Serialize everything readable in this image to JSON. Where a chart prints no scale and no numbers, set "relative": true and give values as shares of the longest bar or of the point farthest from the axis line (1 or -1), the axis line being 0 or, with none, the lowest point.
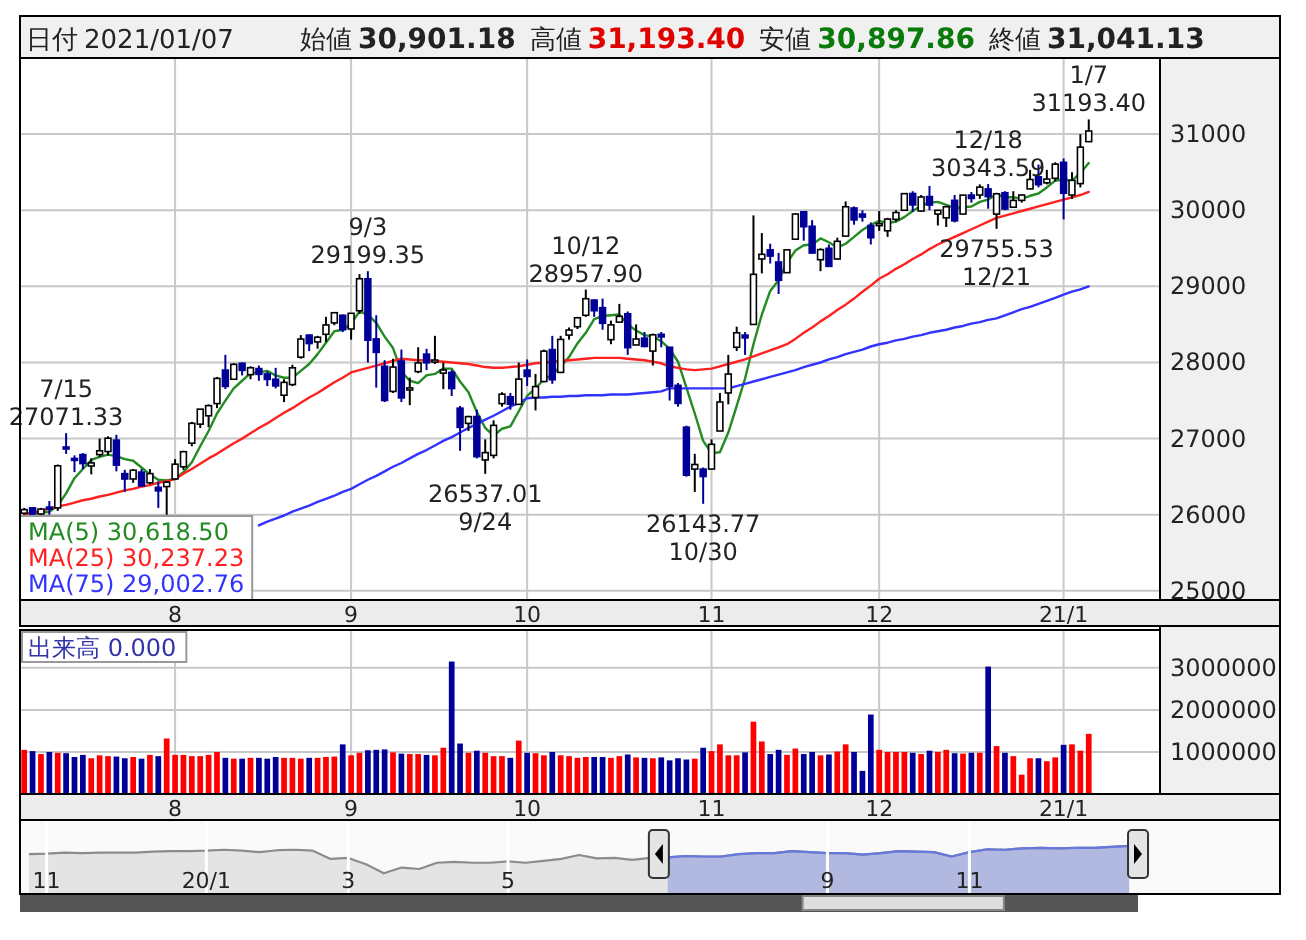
{
  "chart_data": [
    {
      "type": "candlestick",
      "annotations": [
        "日付",
        "2021/01/07",
        "始値",
        "30,901.18",
        "高値",
        "31,193.40",
        "安値",
        "30,897.86",
        "終値",
        "31,041.13",
        {
          "text": "7/15\n27071.33",
          "y": 27071.33
        },
        {
          "text": "9/3\n29199.35",
          "y": 29199.35
        },
        {
          "text": "26537.01\n9/24",
          "y": 26537.01
        },
        {
          "text": "10/12\n28957.90",
          "y": 28957.9
        },
        {
          "text": "26143.77\n10/30",
          "y": 26143.77
        },
        {
          "text": "12/18\n30343.59",
          "y": 30343.59
        },
        {
          "text": "29755.53\n12/21",
          "y": 29755.53
        },
        {
          "text": "1/7\n31193.40",
          "y": 31193.4
        }
      ],
      "categories": [
        null,
        null,
        null,
        null,
        null,
        null,
        null,
        null,
        null,
        null,
        null,
        null,
        null,
        null,
        null,
        null,
        null,
        null,
        "8",
        null,
        null,
        null,
        null,
        null,
        null,
        null,
        null,
        null,
        null,
        null,
        null,
        null,
        null,
        null,
        null,
        null,
        null,
        null,
        null,
        "9",
        null,
        null,
        null,
        null,
        null,
        null,
        null,
        null,
        null,
        null,
        null,
        null,
        null,
        null,
        null,
        null,
        null,
        null,
        null,
        null,
        "10",
        null,
        null,
        null,
        null,
        null,
        null,
        null,
        null,
        null,
        null,
        null,
        null,
        null,
        null,
        null,
        null,
        null,
        null,
        null,
        null,
        null,
        "11",
        null,
        null,
        null,
        null,
        null,
        null,
        null,
        null,
        null,
        null,
        null,
        null,
        null,
        null,
        null,
        null,
        null,
        null,
        null,
        "12",
        null,
        null,
        null,
        null,
        null,
        null,
        null,
        null,
        null,
        null,
        null,
        null,
        null,
        null,
        null,
        null,
        null,
        null,
        null,
        null,
        null,
        "21/1",
        null,
        null,
        null
      ],
      "ohlc": [
        [
          26020,
          26090,
          26000,
          26067
        ],
        [
          26090,
          26100,
          26000,
          26010
        ],
        [
          26010,
          26090,
          26000,
          26075
        ],
        [
          26100,
          26180,
          26000,
          26086
        ],
        [
          26090,
          26660,
          26050,
          26643
        ],
        [
          26890,
          27071.33,
          26800,
          26870
        ],
        [
          26740,
          26780,
          26560,
          26735
        ],
        [
          26790,
          26810,
          26600,
          26672
        ],
        [
          26640,
          26740,
          26530,
          26681
        ],
        [
          26790,
          27000,
          26760,
          26840
        ],
        [
          26830,
          27030,
          26780,
          27005
        ],
        [
          26980,
          27050,
          26570,
          26652
        ],
        [
          26540,
          26590,
          26300,
          26469
        ],
        [
          26470,
          26600,
          26420,
          26585
        ],
        [
          26560,
          26600,
          26370,
          26379
        ],
        [
          26420,
          26600,
          26400,
          26540
        ],
        [
          26360,
          26440,
          26090,
          26314
        ],
        [
          26370,
          26440,
          26000,
          26428
        ],
        [
          26470,
          26730,
          26460,
          26664
        ],
        [
          26630,
          26840,
          26590,
          26828
        ],
        [
          26940,
          27220,
          26900,
          27201
        ],
        [
          27190,
          27390,
          27140,
          27387
        ],
        [
          27300,
          27450,
          27150,
          27433
        ],
        [
          27460,
          27810,
          27400,
          27791
        ],
        [
          27900,
          28100,
          27650,
          27686
        ],
        [
          27780,
          27990,
          27770,
          27976
        ],
        [
          27990,
          28000,
          27830,
          27897
        ],
        [
          27840,
          27950,
          27780,
          27931
        ],
        [
          27920,
          27960,
          27760,
          27844
        ],
        [
          27850,
          27880,
          27690,
          27778
        ],
        [
          27780,
          27930,
          27660,
          27692
        ],
        [
          27570,
          27780,
          27480,
          27739
        ],
        [
          27710,
          27970,
          27690,
          27930
        ],
        [
          28070,
          28360,
          28050,
          28308
        ],
        [
          28360,
          28370,
          28150,
          28249
        ],
        [
          28270,
          28350,
          28180,
          28332
        ],
        [
          28370,
          28600,
          28270,
          28493
        ],
        [
          28520,
          28660,
          28490,
          28654
        ],
        [
          28620,
          28630,
          28400,
          28430
        ],
        [
          28440,
          28650,
          28300,
          28646
        ],
        [
          28680,
          29160,
          28640,
          29100
        ],
        [
          29100,
          29199.35,
          28000,
          28293
        ],
        [
          28310,
          28620,
          27670,
          28133
        ],
        [
          27950,
          28030,
          27480,
          27501
        ],
        [
          27620,
          28050,
          27600,
          27940
        ],
        [
          28020,
          28170,
          27480,
          27535
        ],
        [
          27640,
          27800,
          27440,
          27666
        ],
        [
          27880,
          28200,
          27860,
          27994
        ],
        [
          28110,
          28180,
          27900,
          27996
        ],
        [
          28020,
          28350,
          27980,
          28032
        ],
        [
          27860,
          28000,
          27650,
          27902
        ],
        [
          27870,
          27900,
          27560,
          27658
        ],
        [
          27400,
          27430,
          26840,
          27148
        ],
        [
          27200,
          27300,
          27100,
          27289
        ],
        [
          27290,
          27380,
          26740,
          26763
        ],
        [
          26720,
          26990,
          26537.01,
          26816
        ],
        [
          26780,
          27240,
          26740,
          27174
        ],
        [
          27460,
          27610,
          27420,
          27584
        ],
        [
          27550,
          27600,
          27380,
          27452
        ],
        [
          27450,
          28000,
          27450,
          27782
        ],
        [
          27900,
          28040,
          27690,
          27817
        ],
        [
          27540,
          27850,
          27370,
          27683
        ],
        [
          27750,
          28170,
          27740,
          28149
        ],
        [
          28170,
          28350,
          27720,
          27773
        ],
        [
          27870,
          28350,
          27860,
          28303
        ],
        [
          28360,
          28460,
          28300,
          28426
        ],
        [
          28470,
          28600,
          28440,
          28587
        ],
        [
          28620,
          28957.9,
          28600,
          28838
        ],
        [
          28820,
          28830,
          28600,
          28680
        ],
        [
          28720,
          28840,
          28430,
          28515
        ],
        [
          28300,
          28550,
          28240,
          28494
        ],
        [
          28530,
          28770,
          28530,
          28606
        ],
        [
          28640,
          28670,
          28100,
          28195
        ],
        [
          28230,
          28500,
          28230,
          28309
        ],
        [
          28320,
          28400,
          28200,
          28211
        ],
        [
          28150,
          28380,
          27960,
          28364
        ],
        [
          28370,
          28400,
          28200,
          28336
        ],
        [
          28200,
          28200,
          27500,
          27685
        ],
        [
          27700,
          27730,
          27420,
          27463
        ],
        [
          27150,
          27170,
          26500,
          26520
        ],
        [
          26600,
          26800,
          26300,
          26660
        ],
        [
          26600,
          26620,
          26143.77,
          26502
        ],
        [
          26600,
          26990,
          26600,
          26925
        ],
        [
          27100,
          27600,
          27100,
          27481
        ],
        [
          27600,
          28100,
          27450,
          27848
        ],
        [
          28200,
          28470,
          28150,
          28390
        ],
        [
          28360,
          28400,
          28100,
          28323
        ],
        [
          28500,
          29933,
          28500,
          29158
        ],
        [
          29360,
          29700,
          29170,
          29421
        ],
        [
          29480,
          29560,
          29300,
          29398
        ],
        [
          29320,
          29440,
          28900,
          29080
        ],
        [
          29180,
          29480,
          29180,
          29480
        ],
        [
          29620,
          29960,
          29620,
          29950
        ],
        [
          29980,
          29990,
          29600,
          29784
        ],
        [
          29790,
          29870,
          29430,
          29438
        ],
        [
          29350,
          29500,
          29200,
          29483
        ],
        [
          29500,
          29550,
          29260,
          29263
        ],
        [
          29360,
          29640,
          29350,
          29592
        ],
        [
          29660,
          30116,
          29660,
          30046
        ],
        [
          30030,
          30050,
          29810,
          29873
        ],
        [
          29950,
          30000,
          29850,
          29910
        ],
        [
          29800,
          29840,
          29550,
          29639
        ],
        [
          29800,
          29990,
          29730,
          29824
        ],
        [
          29730,
          29900,
          29650,
          29884
        ],
        [
          29880,
          30000,
          29850,
          29970
        ],
        [
          30000,
          30220,
          30000,
          30218
        ],
        [
          30220,
          30250,
          29980,
          30070
        ],
        [
          29990,
          30200,
          29980,
          30174
        ],
        [
          30180,
          30320,
          30000,
          30068
        ],
        [
          29950,
          30000,
          29800,
          29999
        ],
        [
          29900,
          30050,
          29780,
          30046
        ],
        [
          30130,
          30200,
          29840,
          29861
        ],
        [
          29950,
          30200,
          29950,
          30199
        ],
        [
          30200,
          30240,
          30100,
          30155
        ],
        [
          30200,
          30340,
          30150,
          30304
        ],
        [
          30280,
          30343.59,
          30020,
          30179
        ],
        [
          29950,
          30230,
          29755.53,
          30216
        ],
        [
          30230,
          30250,
          30000,
          30016
        ],
        [
          30040,
          30250,
          30040,
          30129
        ],
        [
          30130,
          30210,
          30100,
          30200
        ],
        [
          30280,
          30530,
          30280,
          30404
        ],
        [
          30440,
          30600,
          30300,
          30336
        ],
        [
          30360,
          30530,
          30340,
          30410
        ],
        [
          30420,
          30630,
          30380,
          30606
        ],
        [
          30630,
          30680,
          29880,
          30224
        ],
        [
          30200,
          30500,
          30150,
          30392
        ],
        [
          30350,
          31000,
          30300,
          30829
        ],
        [
          30901.18,
          31193.4,
          30897.86,
          31041.13
        ]
      ],
      "series": [
        {
          "name": "MA(5) 30,618.50",
          "type": "line",
          "color": "#228b22",
          "values": [
            26010,
            26020,
            26030,
            26040,
            26120,
            26280,
            26480,
            26600,
            26720,
            26760,
            26790,
            26770,
            26730,
            26710,
            26620,
            26530,
            26460,
            26450,
            26470,
            26560,
            26690,
            26900,
            27100,
            27330,
            27500,
            27660,
            27760,
            27860,
            27870,
            27890,
            27830,
            27800,
            27800,
            27890,
            27980,
            28110,
            28260,
            28410,
            28430,
            28510,
            28670,
            28630,
            28520,
            28340,
            28190,
            27880,
            27760,
            27730,
            27830,
            27850,
            27920,
            27920,
            27750,
            27610,
            27350,
            27140,
            27040,
            27130,
            27160,
            27360,
            27560,
            27660,
            27780,
            27840,
            27950,
            28070,
            28250,
            28390,
            28570,
            28610,
            28620,
            28630,
            28500,
            28420,
            28360,
            28340,
            28280,
            28180,
            28010,
            27670,
            27330,
            26970,
            26810,
            26820,
            27080,
            27430,
            27790,
            28240,
            28630,
            28940,
            29080,
            29310,
            29470,
            29540,
            29550,
            29630,
            29580,
            29510,
            29560,
            29650,
            29740,
            29810,
            29860,
            29830,
            29850,
            29910,
            29990,
            30060,
            30100,
            30110,
            30070,
            30030,
            30040,
            30050,
            30110,
            30140,
            30210,
            30170,
            30170,
            30150,
            30190,
            30220,
            30300,
            30390,
            30400,
            30390,
            30490,
            30620
          ]
        },
        {
          "name": "MA(25) 30,237.23",
          "type": "line",
          "color": "#ff2020",
          "values": [
            26000,
            26030,
            26050,
            26080,
            26110,
            26130,
            26160,
            26190,
            26210,
            26240,
            26260,
            26290,
            26320,
            26340,
            26370,
            26390,
            26420,
            26440,
            26470,
            26540,
            26600,
            26670,
            26740,
            26800,
            26870,
            26940,
            27000,
            27070,
            27140,
            27200,
            27270,
            27340,
            27400,
            27470,
            27540,
            27600,
            27670,
            27740,
            27800,
            27870,
            27900,
            27930,
            27960,
            27990,
            28020,
            28050,
            28040,
            28030,
            28030,
            28020,
            28010,
            28000,
            27990,
            27980,
            27960,
            27940,
            27930,
            27930,
            27940,
            27950,
            27970,
            27990,
            28000,
            28010,
            28020,
            28030,
            28040,
            28050,
            28060,
            28060,
            28060,
            28060,
            28050,
            28040,
            28030,
            28010,
            27990,
            27950,
            27930,
            27910,
            27900,
            27910,
            27920,
            27950,
            27980,
            28010,
            28040,
            28080,
            28120,
            28160,
            28200,
            28240,
            28310,
            28390,
            28460,
            28540,
            28610,
            28690,
            28760,
            28840,
            28930,
            29010,
            29100,
            29160,
            29230,
            29290,
            29360,
            29420,
            29490,
            29550,
            29600,
            29650,
            29700,
            29750,
            29800,
            29850,
            29900,
            29930,
            29960,
            29990,
            30020,
            30050,
            30080,
            30110,
            30140,
            30170,
            30200,
            30240
          ]
        },
        {
          "name": "MA(75) 29,002.76",
          "type": "line",
          "color": "#3333ff",
          "values": [
            null,
            null,
            null,
            null,
            null,
            null,
            null,
            null,
            null,
            null,
            null,
            null,
            null,
            null,
            null,
            null,
            null,
            null,
            null,
            null,
            null,
            null,
            null,
            null,
            null,
            null,
            null,
            null,
            25860,
            25910,
            25950,
            25990,
            26040,
            26080,
            26120,
            26170,
            26210,
            26250,
            26300,
            26340,
            26400,
            26460,
            26510,
            26570,
            26630,
            26680,
            26740,
            26800,
            26850,
            26910,
            26970,
            27020,
            27080,
            27140,
            27190,
            27250,
            27300,
            27360,
            27420,
            27470,
            27530,
            27540,
            27540,
            27550,
            27550,
            27560,
            27560,
            27570,
            27570,
            27570,
            27580,
            27580,
            27580,
            27590,
            27600,
            27610,
            27620,
            27660,
            27660,
            27660,
            27660,
            27660,
            27660,
            27660,
            27660,
            27690,
            27720,
            27750,
            27780,
            27810,
            27840,
            27870,
            27900,
            27940,
            27970,
            28000,
            28040,
            28070,
            28110,
            28140,
            28170,
            28210,
            28240,
            28260,
            28290,
            28310,
            28340,
            28360,
            28390,
            28410,
            28430,
            28460,
            28480,
            28510,
            28530,
            28560,
            28580,
            28620,
            28660,
            28700,
            28730,
            28770,
            28810,
            28850,
            28890,
            28930,
            28960,
            29000
          ]
        }
      ],
      "ylim": [
        24880,
        32000
      ],
      "yticks": [
        25000,
        26000,
        27000,
        28000,
        29000,
        30000,
        31000
      ],
      "grid": true,
      "legend": "bottom left"
    },
    {
      "type": "bar",
      "annotations": [
        "出来高 0.000"
      ],
      "categories": [
        null,
        null,
        null,
        null,
        null,
        null,
        null,
        null,
        null,
        null,
        null,
        null,
        null,
        null,
        null,
        null,
        null,
        null,
        "8",
        null,
        null,
        null,
        null,
        null,
        null,
        null,
        null,
        null,
        null,
        null,
        null,
        null,
        null,
        null,
        null,
        null,
        null,
        null,
        null,
        "9",
        null,
        null,
        null,
        null,
        null,
        null,
        null,
        null,
        null,
        null,
        null,
        null,
        null,
        null,
        null,
        null,
        null,
        null,
        null,
        null,
        "10",
        null,
        null,
        null,
        null,
        null,
        null,
        null,
        null,
        null,
        null,
        null,
        null,
        null,
        null,
        null,
        null,
        null,
        null,
        null,
        null,
        null,
        "11",
        null,
        null,
        null,
        null,
        null,
        null,
        null,
        null,
        null,
        null,
        null,
        null,
        null,
        null,
        null,
        null,
        null,
        null,
        null,
        "12",
        null,
        null,
        null,
        null,
        null,
        null,
        null,
        null,
        null,
        null,
        null,
        null,
        null,
        null,
        null,
        null,
        null,
        null,
        null,
        null,
        null,
        "21/1",
        null,
        null,
        null
      ],
      "values": [
        1050000,
        1020000,
        950000,
        1000000,
        980000,
        970000,
        880000,
        930000,
        850000,
        920000,
        900000,
        890000,
        850000,
        880000,
        840000,
        930000,
        900000,
        1320000,
        930000,
        930000,
        900000,
        900000,
        930000,
        1000000,
        860000,
        840000,
        840000,
        860000,
        860000,
        840000,
        880000,
        860000,
        860000,
        840000,
        860000,
        860000,
        880000,
        890000,
        1180000,
        920000,
        980000,
        1040000,
        1050000,
        1060000,
        990000,
        960000,
        950000,
        950000,
        930000,
        920000,
        1100000,
        3150000,
        1200000,
        980000,
        1030000,
        980000,
        900000,
        900000,
        860000,
        1270000,
        980000,
        970000,
        920000,
        1000000,
        920000,
        900000,
        860000,
        880000,
        880000,
        880000,
        860000,
        900000,
        940000,
        870000,
        860000,
        850000,
        870000,
        800000,
        850000,
        820000,
        840000,
        1100000,
        1020000,
        1180000,
        920000,
        920000,
        990000,
        1720000,
        1250000,
        950000,
        1050000,
        930000,
        1080000,
        950000,
        1000000,
        920000,
        940000,
        1010000,
        1180000,
        1000000,
        550000,
        1890000,
        1050000,
        1000000,
        1000000,
        1000000,
        980000,
        950000,
        1030000,
        1000000,
        1050000,
        970000,
        960000,
        980000,
        980000,
        3030000,
        1140000,
        980000,
        900000,
        460000,
        850000,
        850000,
        780000,
        870000,
        1170000,
        1180000,
        1030000,
        1430000
      ],
      "colors": [
        "#ff0000",
        "#000099",
        "#ff0000",
        "#000099",
        "#ff0000",
        "#000099",
        "#000099",
        "#000099",
        "#ff0000",
        "#ff0000",
        "#ff0000",
        "#000099",
        "#000099",
        "#ff0000",
        "#000099",
        "#ff0000",
        "#000099",
        "#ff0000",
        "#ff0000",
        "#ff0000",
        "#ff0000",
        "#ff0000",
        "#ff0000",
        "#ff0000",
        "#000099",
        "#ff0000",
        "#000099",
        "#ff0000",
        "#000099",
        "#000099",
        "#000099",
        "#ff0000",
        "#ff0000",
        "#ff0000",
        "#000099",
        "#ff0000",
        "#ff0000",
        "#ff0000",
        "#000099",
        "#ff0000",
        "#ff0000",
        "#000099",
        "#000099",
        "#000099",
        "#ff0000",
        "#000099",
        "#ff0000",
        "#ff0000",
        "#000099",
        "#ff0000",
        "#ff0000",
        "#000099",
        "#000099",
        "#ff0000",
        "#000099",
        "#ff0000",
        "#ff0000",
        "#ff0000",
        "#000099",
        "#ff0000",
        "#000099",
        "#ff0000",
        "#ff0000",
        "#000099",
        "#ff0000",
        "#ff0000",
        "#ff0000",
        "#ff0000",
        "#000099",
        "#000099",
        "#ff0000",
        "#ff0000",
        "#000099",
        "#ff0000",
        "#000099",
        "#ff0000",
        "#000099",
        "#000099",
        "#000099",
        "#000099",
        "#ff0000",
        "#000099",
        "#ff0000",
        "#ff0000",
        "#ff0000",
        "#ff0000",
        "#000099",
        "#ff0000",
        "#ff0000",
        "#000099",
        "#000099",
        "#ff0000",
        "#ff0000",
        "#000099",
        "#000099",
        "#ff0000",
        "#000099",
        "#ff0000",
        "#ff0000",
        "#000099",
        "#000099",
        "#000099",
        "#ff0000",
        "#ff0000",
        "#ff0000",
        "#ff0000",
        "#000099",
        "#ff0000",
        "#000099",
        "#ff0000",
        "#ff0000",
        "#000099",
        "#ff0000",
        "#000099",
        "#ff0000",
        "#000099",
        "#ff0000",
        "#000099",
        "#ff0000",
        "#ff0000",
        "#ff0000",
        "#000099",
        "#ff0000",
        "#ff0000",
        "#000099",
        "#ff0000",
        "#ff0000",
        "#ff0000"
      ],
      "ylim": [
        0,
        3900000
      ],
      "yticks": [
        1000000,
        2000000,
        3000000
      ],
      "grid": true
    },
    {
      "type": "area",
      "relative": true,
      "categories": [
        null,
        "11",
        null,
        null,
        null,
        null,
        null,
        null,
        null,
        null,
        "20/1",
        null,
        null,
        null,
        null,
        null,
        null,
        null,
        "3",
        null,
        null,
        null,
        null,
        null,
        null,
        null,
        null,
        "5",
        null,
        null,
        null,
        null,
        null,
        null,
        null,
        null,
        null,
        null,
        null,
        null,
        null,
        null,
        null,
        null,
        null,
        "9",
        null,
        null,
        null,
        null,
        null,
        null,
        null,
        "11",
        null,
        null,
        null,
        null,
        null,
        null,
        null,
        null,
        null
      ],
      "series": [
        {
          "color": "#8c8c8c",
          "values": [
            0.83,
            0.84,
            0.86,
            0.85,
            0.86,
            0.86,
            0.86,
            0.88,
            0.89,
            0.89,
            0.9,
            0.92,
            0.9,
            0.87,
            0.91,
            0.92,
            0.9,
            0.73,
            0.75,
            0.62,
            0.43,
            0.55,
            0.52,
            0.65,
            0.67,
            0.65,
            0.65,
            0.68,
            0.65,
            0.69,
            0.73,
            0.81,
            0.74,
            0.75,
            0.71,
            0.75,
            0.76,
            0.79,
            0.78,
            0.78,
            0.83,
            0.85,
            0.85,
            0.89,
            0.87,
            0.85,
            0.85,
            0.82,
            0.85,
            0.89,
            0.88,
            0.87,
            0.78,
            0.87,
            0.93,
            0.92,
            0.95,
            0.96,
            0.95,
            0.96,
            0.96,
            0.98,
            1.0
          ]
        },
        {
          "color": "#6677dd",
          "values": [
            null,
            null,
            null,
            null,
            null,
            null,
            null,
            null,
            null,
            null,
            null,
            null,
            null,
            null,
            null,
            null,
            null,
            null,
            null,
            null,
            null,
            null,
            null,
            null,
            null,
            null,
            null,
            null,
            null,
            null,
            null,
            null,
            null,
            null,
            null,
            null,
            0.76,
            0.79,
            0.78,
            0.78,
            0.83,
            0.85,
            0.85,
            0.89,
            0.87,
            0.85,
            0.85,
            0.82,
            0.85,
            0.89,
            0.88,
            0.87,
            0.78,
            0.87,
            0.93,
            0.92,
            0.95,
            0.96,
            0.95,
            0.96,
            0.96,
            0.98,
            1.0
          ]
        }
      ],
      "grid": "x",
      "tick_labels": "x"
    }
  ]
}
